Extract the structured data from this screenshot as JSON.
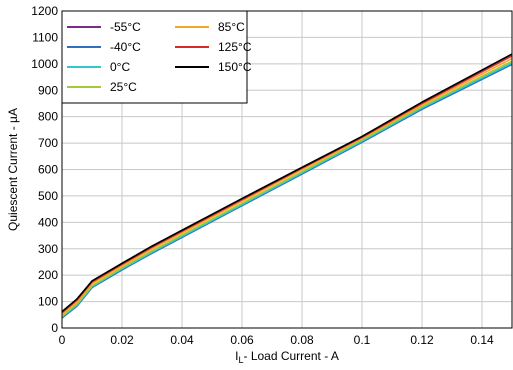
{
  "chart_data": {
    "type": "line",
    "title": "",
    "xlabel": "I",
    "xlabel_sub": "L",
    "xlabel_rest": "- Load Current - A",
    "ylabel": "Quiescent Current - µA",
    "xlim": [
      0,
      0.15
    ],
    "ylim": [
      0,
      1200
    ],
    "xticks": [
      0,
      0.02,
      0.04,
      0.06,
      0.08,
      0.1,
      0.12,
      0.14
    ],
    "xtick_labels": [
      "0",
      "0.02",
      "0.04",
      "0.06",
      "0.08",
      "0.1",
      "0.12",
      "0.14"
    ],
    "yticks": [
      0,
      100,
      200,
      300,
      400,
      500,
      600,
      700,
      800,
      900,
      1000,
      1100,
      1200
    ],
    "ytick_labels": [
      "0",
      "100",
      "200",
      "300",
      "400",
      "500",
      "600",
      "700",
      "800",
      "900",
      "1000",
      "1100",
      "1200"
    ],
    "grid": true,
    "legend_position": "top-left",
    "x": [
      0,
      0.005,
      0.01,
      0.02,
      0.03,
      0.04,
      0.06,
      0.08,
      0.1,
      0.12,
      0.15
    ],
    "series": [
      {
        "name": "-55°C",
        "color": "#7b2a8a",
        "values": [
          40,
          85,
          155,
          222,
          285,
          345,
          465,
          585,
          705,
          830,
          1000
        ]
      },
      {
        "name": "-40°C",
        "color": "#2f6fbd",
        "values": [
          38,
          83,
          153,
          220,
          283,
          343,
          463,
          583,
          703,
          828,
          998
        ]
      },
      {
        "name": "0°C",
        "color": "#33c7cc",
        "values": [
          42,
          87,
          157,
          224,
          287,
          347,
          467,
          587,
          707,
          833,
          1003
        ]
      },
      {
        "name": "25°C",
        "color": "#a5c93a",
        "values": [
          45,
          92,
          160,
          228,
          292,
          352,
          472,
          592,
          712,
          838,
          1010
        ]
      },
      {
        "name": "85°C",
        "color": "#f5a623",
        "values": [
          52,
          100,
          168,
          235,
          300,
          360,
          480,
          600,
          718,
          845,
          1020
        ]
      },
      {
        "name": "125°C",
        "color": "#d62c27",
        "values": [
          58,
          106,
          174,
          241,
          306,
          366,
          486,
          605,
          722,
          850,
          1030
        ]
      },
      {
        "name": "150°C",
        "color": "#000000",
        "values": [
          62,
          110,
          178,
          245,
          310,
          370,
          490,
          608,
          725,
          855,
          1037
        ]
      }
    ]
  }
}
